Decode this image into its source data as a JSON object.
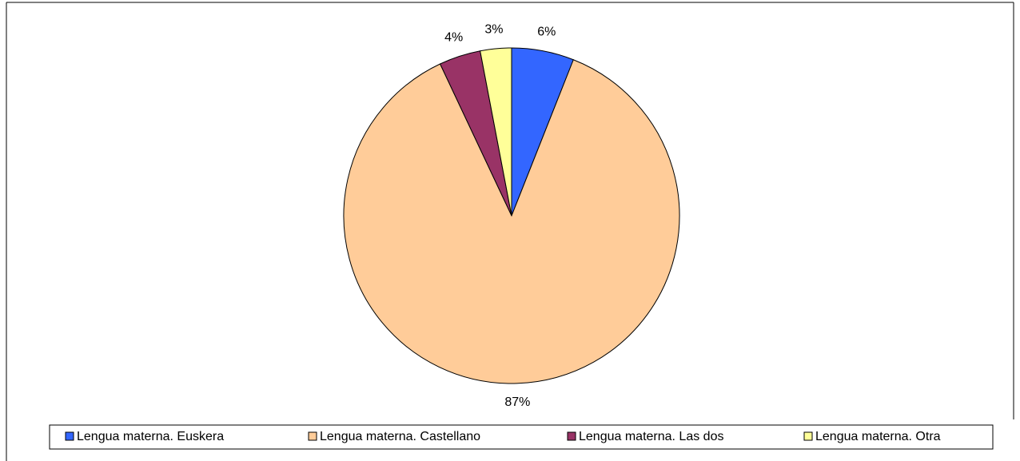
{
  "chart_data": {
    "type": "pie",
    "categories": [
      "Lengua materna. Euskera",
      "Lengua materna. Castellano",
      "Lengua materna. Las dos",
      "Lengua materna. Otra"
    ],
    "values": [
      6,
      87,
      4,
      3
    ],
    "value_labels": [
      "6%",
      "87%",
      "4%",
      "3%"
    ],
    "colors": [
      "#3366ff",
      "#ffcc99",
      "#993366",
      "#ffff99"
    ],
    "legend": "bottom"
  }
}
